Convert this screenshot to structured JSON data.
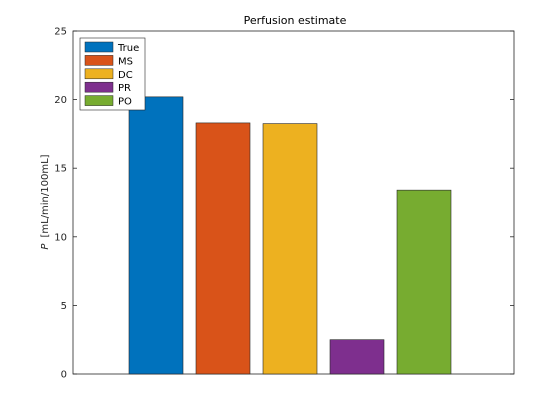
{
  "chart_data": {
    "type": "bar",
    "title": "Perfusion estimate",
    "xlabel": "",
    "ylabel_symbol": "P",
    "ylabel_unit": "[mL/min/100mL]",
    "ylim": [
      0,
      25
    ],
    "yticks": [
      0,
      5,
      10,
      15,
      20,
      25
    ],
    "grid": false,
    "legend_placement": "top-left",
    "categories": [
      "True",
      "MS",
      "DC",
      "PR",
      "PO"
    ],
    "series": [
      {
        "name": "True",
        "value": 20.2,
        "color": "#0072BD"
      },
      {
        "name": "MS",
        "value": 18.3,
        "color": "#D95319"
      },
      {
        "name": "DC",
        "value": 18.25,
        "color": "#EDB120"
      },
      {
        "name": "PR",
        "value": 2.5,
        "color": "#7E2F8E"
      },
      {
        "name": "PO",
        "value": 13.4,
        "color": "#77AC30"
      }
    ]
  }
}
